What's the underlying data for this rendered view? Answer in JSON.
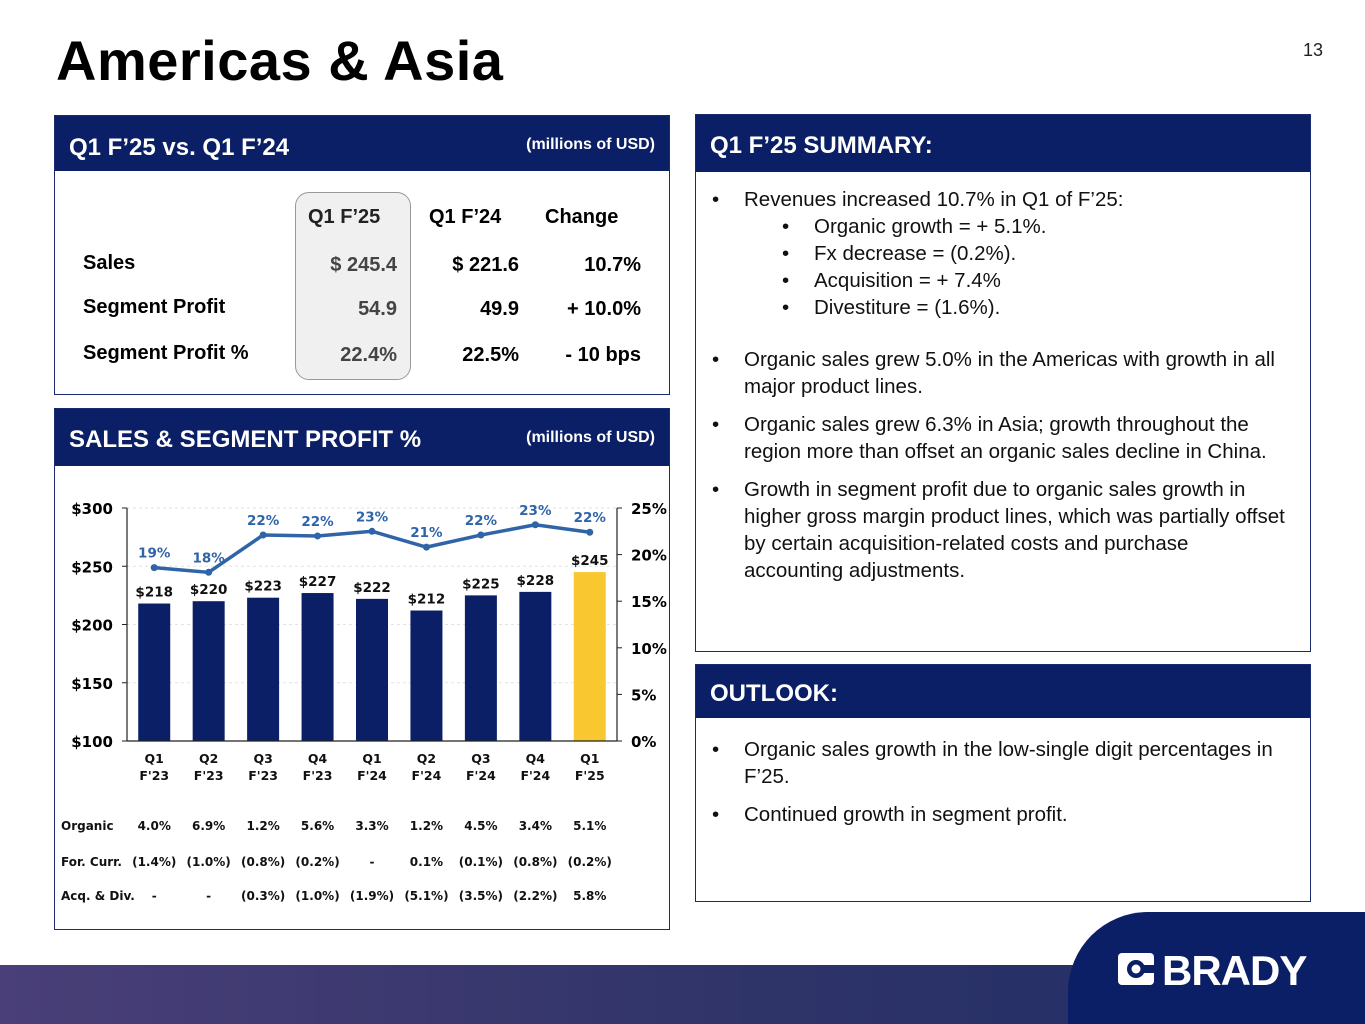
{
  "page": {
    "title": "Americas & Asia",
    "number": "13"
  },
  "table_panel": {
    "title": "Q1 F’25 vs. Q1 F’24",
    "unit": "(millions of USD)",
    "columns": [
      "Q1 F’25",
      "Q1 F’24",
      "Change"
    ],
    "rows": [
      {
        "label": "Sales",
        "values": [
          "$ 245.4",
          "$ 221.6",
          "10.7%"
        ]
      },
      {
        "label": "Segment Profit",
        "values": [
          "54.9",
          "49.9",
          "+ 10.0%"
        ]
      },
      {
        "label": "Segment Profit %",
        "values": [
          "22.4%",
          "22.5%",
          "- 10 bps"
        ]
      }
    ]
  },
  "chart_panel": {
    "title": "SALES & SEGMENT PROFIT %",
    "unit": "(millions of USD)"
  },
  "chart_data": {
    "type": "bar",
    "categories": [
      "Q1\nF'23",
      "Q2\nF'23",
      "Q3\nF'23",
      "Q4\nF'23",
      "Q1\nF'24",
      "Q2\nF'24",
      "Q3\nF'24",
      "Q4\nF'24",
      "Q1\nF'25"
    ],
    "category_lines": [
      [
        "Q1",
        "F'23"
      ],
      [
        "Q2",
        "F'23"
      ],
      [
        "Q3",
        "F'23"
      ],
      [
        "Q4",
        "F'23"
      ],
      [
        "Q1",
        "F'24"
      ],
      [
        "Q2",
        "F'24"
      ],
      [
        "Q3",
        "F'24"
      ],
      [
        "Q4",
        "F'24"
      ],
      [
        "Q1",
        "F'25"
      ]
    ],
    "series": [
      {
        "kind": "bar",
        "axis": "left",
        "values": [
          218,
          220,
          223,
          227,
          222,
          212,
          225,
          228,
          245
        ],
        "labels": [
          "$218",
          "$220",
          "$223",
          "$227",
          "$222",
          "$212",
          "$225",
          "$228",
          "$245"
        ],
        "color": "#0b1f66",
        "highlight_color": "#f9c72f",
        "highlight_index": 8
      },
      {
        "kind": "line",
        "axis": "right",
        "values": [
          18.6,
          18.1,
          22.1,
          22.0,
          22.5,
          20.8,
          22.1,
          23.2,
          22.4
        ],
        "labels": [
          "19%",
          "18%",
          "22%",
          "22%",
          "23%",
          "21%",
          "22%",
          "23%",
          "22%"
        ],
        "color": "#2f64a8"
      }
    ],
    "y_left": {
      "ylim": [
        100,
        300
      ],
      "ticks": [
        100,
        150,
        200,
        250,
        300
      ],
      "tick_labels": [
        "$100",
        "$150",
        "$200",
        "$250",
        "$300"
      ]
    },
    "y_right": {
      "ylim": [
        0,
        25
      ],
      "ticks": [
        0,
        5,
        10,
        15,
        20,
        25
      ],
      "tick_labels": [
        "0%",
        "5%",
        "10%",
        "15%",
        "20%",
        "25%"
      ]
    },
    "grid": true,
    "table": {
      "rows": [
        {
          "label": "Organic",
          "values": [
            "4.0%",
            "6.9%",
            "1.2%",
            "5.6%",
            "3.3%",
            "1.2%",
            "4.5%",
            "3.4%",
            "5.1%"
          ]
        },
        {
          "label": "For. Curr.",
          "values": [
            "(1.4%)",
            "(1.0%)",
            "(0.8%)",
            "(0.2%)",
            "-",
            "0.1%",
            "(0.1%)",
            "(0.8%)",
            "(0.2%)"
          ]
        },
        {
          "label": "Acq. & Div.",
          "values": [
            "-",
            "-",
            "(0.3%)",
            "(1.0%)",
            "(1.9%)",
            "(5.1%)",
            "(3.5%)",
            "(2.2%)",
            "5.8%"
          ]
        }
      ]
    }
  },
  "summary": {
    "title": "Q1 F’25 SUMMARY:",
    "intro": "Revenues increased 10.7% in Q1 of F’25:",
    "sub_items": [
      "Organic growth = + 5.1%.",
      "Fx decrease = (0.2%).",
      "Acquisition = + 7.4%",
      "Divestiture = (1.6%)."
    ],
    "items": [
      "Organic sales grew 5.0% in the Americas with growth in all major product lines.",
      "Organic sales grew 6.3% in Asia; growth throughout the region more than offset an organic sales decline in China.",
      "Growth in segment profit due to organic sales growth in higher gross margin product lines, which was partially offset by certain acquisition-related costs and purchase accounting adjustments."
    ]
  },
  "outlook": {
    "title": "OUTLOOK:",
    "items": [
      "Organic sales growth in the low-single digit percentages in F’25.",
      "Continued growth in segment profit."
    ]
  },
  "footer": {
    "logo_text": "BRADY",
    "logo_icon": "brady-logo-icon"
  }
}
